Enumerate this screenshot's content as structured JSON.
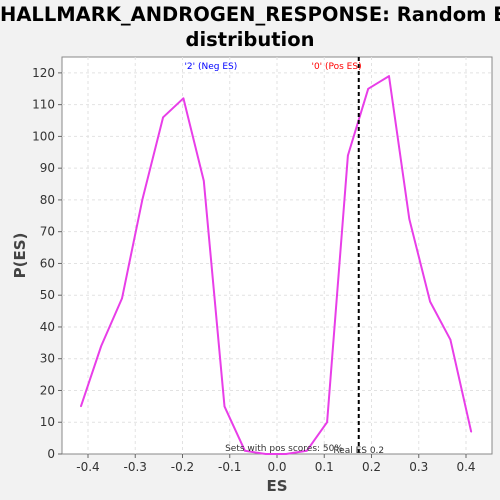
{
  "chart_data": {
    "type": "line",
    "title_line1": "HALLMARK_ANDROGEN_RESPONSE: Random ES",
    "title_line2": "distribution",
    "xlabel": "ES",
    "ylabel": "P(ES)",
    "xlim": [
      -0.455,
      0.455
    ],
    "ylim": [
      0,
      125
    ],
    "x_ticks": [
      "-0.4",
      "-0.3",
      "-0.2",
      "-0.1",
      "0.0",
      "0.1",
      "0.2",
      "0.3",
      "0.4"
    ],
    "x_tick_values": [
      -0.4,
      -0.3,
      -0.2,
      -0.1,
      0.0,
      0.1,
      0.2,
      0.3,
      0.4
    ],
    "y_ticks": [
      "0",
      "10",
      "20",
      "30",
      "40",
      "50",
      "60",
      "70",
      "80",
      "90",
      "100",
      "110",
      "120"
    ],
    "y_tick_values": [
      0,
      10,
      20,
      30,
      40,
      50,
      60,
      70,
      80,
      90,
      100,
      110,
      120
    ],
    "grid": true,
    "series": [
      {
        "color": "#e83ee8",
        "x": [
          -0.415,
          -0.372,
          -0.328,
          -0.285,
          -0.241,
          -0.198,
          -0.155,
          -0.111,
          -0.068,
          -0.024,
          0.019,
          0.063,
          0.106,
          0.15,
          0.193,
          0.237,
          0.28,
          0.324,
          0.367,
          0.411
        ],
        "y": [
          15,
          34,
          49,
          80,
          106,
          112,
          86,
          15,
          1,
          0,
          0,
          1,
          10,
          94,
          115,
          119,
          74,
          48,
          36,
          7
        ]
      }
    ],
    "real_es": {
      "value": 0.173,
      "label": "Real ES 0.2",
      "color": "#000000"
    },
    "annotations": {
      "neg_label": "'2' (Neg ES)",
      "neg_color": "#0000ff",
      "pos_label": "'0' (Pos ES)",
      "pos_color": "#ff0000",
      "pos_scores": "Sets with pos scores: 50%"
    }
  }
}
